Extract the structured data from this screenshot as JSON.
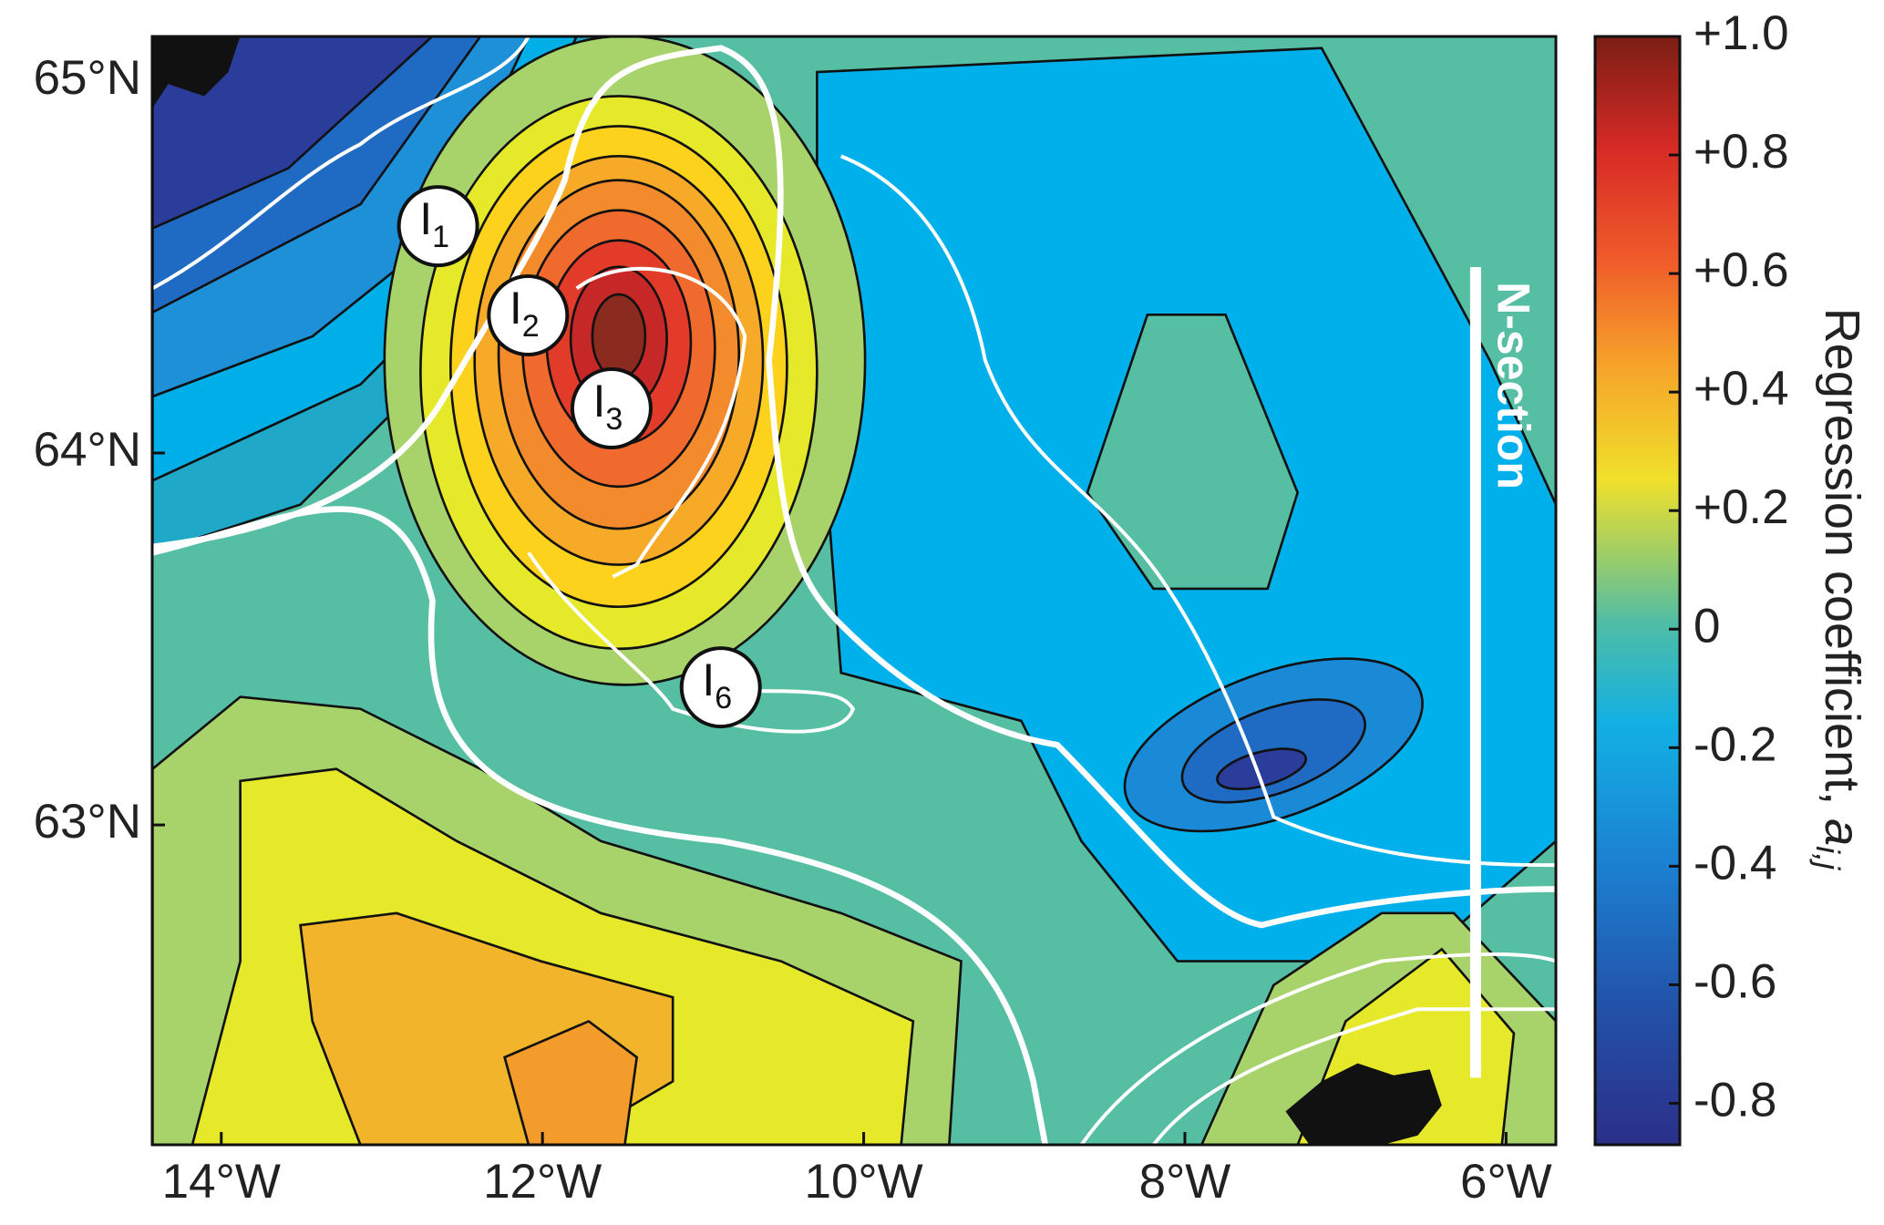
{
  "map": {
    "xlim": [
      -14.43,
      -5.69
    ],
    "ylim": [
      62.14,
      65.12
    ],
    "xticks": [
      {
        "value": -14,
        "label": "14°W"
      },
      {
        "value": -12,
        "label": "12°W"
      },
      {
        "value": -10,
        "label": "10°W"
      },
      {
        "value": -8,
        "label": "8°W"
      },
      {
        "value": -6,
        "label": "6°W"
      }
    ],
    "yticks": [
      {
        "value": 65,
        "label": "65°N"
      },
      {
        "value": 64,
        "label": "64°N"
      },
      {
        "value": 63,
        "label": "63°N"
      }
    ]
  },
  "colorbar": {
    "clim": [
      -0.87,
      1.0
    ],
    "ticks": [
      {
        "value": 1.0,
        "label": "+1.0"
      },
      {
        "value": 0.8,
        "label": "+0.8"
      },
      {
        "value": 0.6,
        "label": "+0.6"
      },
      {
        "value": 0.4,
        "label": "+0.4"
      },
      {
        "value": 0.2,
        "label": "+0.2"
      },
      0,
      {
        "value": -0.2,
        "label": "-0.2"
      },
      {
        "value": -0.4,
        "label": "-0.4"
      },
      {
        "value": -0.6,
        "label": "-0.6"
      },
      {
        "value": -0.8,
        "label": "-0.8"
      }
    ],
    "label": "Regression coefficient, ",
    "symbol": "a",
    "subscript": "i,j"
  },
  "stations": [
    {
      "name": "I",
      "sub": "1",
      "lon": -12.65,
      "lat": 64.61
    },
    {
      "name": "I",
      "sub": "2",
      "lon": -12.09,
      "lat": 64.37
    },
    {
      "name": "I",
      "sub": "3",
      "lon": -11.57,
      "lat": 64.12
    },
    {
      "name": "I",
      "sub": "6",
      "lon": -10.89,
      "lat": 63.37
    }
  ],
  "section": {
    "label": "N-section",
    "lon": -6.19,
    "lat": [
      64.5,
      62.32
    ]
  }
}
